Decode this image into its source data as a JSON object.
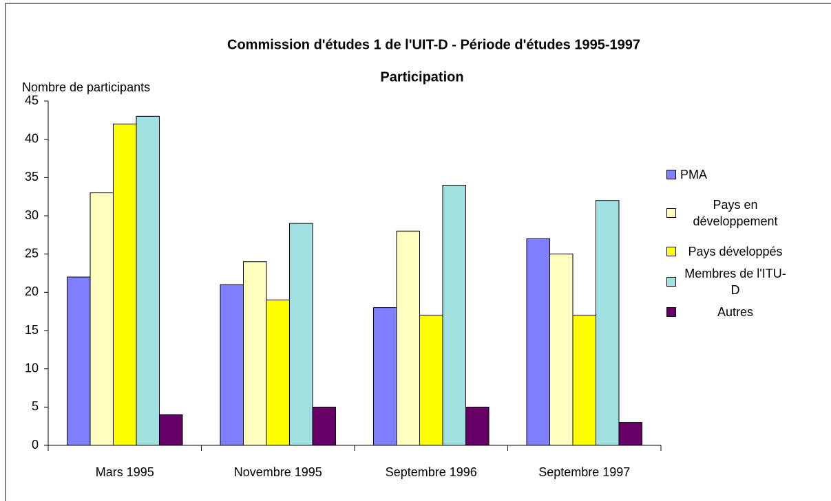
{
  "chart_data": {
    "type": "bar",
    "title": "Commission d'études 1 de l'UIT-D - Période d'études 1995-1997",
    "subtitle": "Participation",
    "y_label": "Nombre de participants",
    "categories": [
      "Mars 1995",
      "Novembre 1995",
      "Septembre 1996",
      "Septembre 1997"
    ],
    "series": [
      {
        "name": "PMA",
        "color": "#8080ff",
        "values": [
          22,
          21,
          18,
          27
        ]
      },
      {
        "name": "Pays en développement",
        "color": "#ffffc0",
        "values": [
          33,
          24,
          28,
          25
        ]
      },
      {
        "name": "Pays développés",
        "color": "#ffff00",
        "values": [
          42,
          19,
          17,
          17
        ]
      },
      {
        "name": "Membres de l'ITU-D",
        "color": "#a0e0e0",
        "values": [
          43,
          29,
          34,
          32
        ]
      },
      {
        "name": "Autres",
        "color": "#660066",
        "values": [
          4,
          5,
          5,
          3
        ]
      }
    ],
    "ylim": [
      0,
      45
    ],
    "yticks": [
      0,
      5,
      10,
      15,
      20,
      25,
      30,
      35,
      40,
      45
    ],
    "grid": false,
    "legend": "right"
  }
}
